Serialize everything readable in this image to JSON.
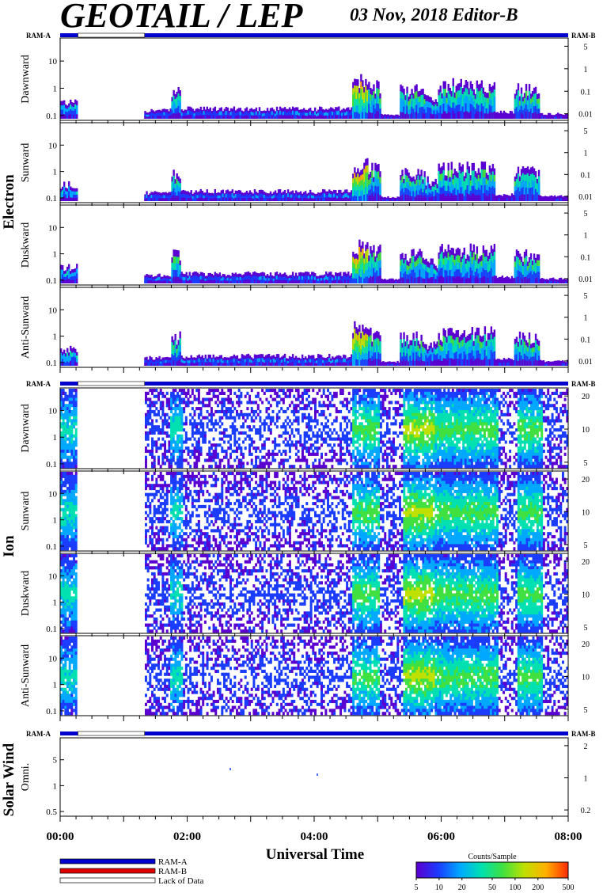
{
  "header": {
    "title": "GEOTAIL / LEP",
    "date_editor": "03 Nov, 2018   Editor-B"
  },
  "groups": [
    {
      "label": "Electron",
      "ram_left": "RAM-A",
      "ram_right": "RAM-B"
    },
    {
      "label": "Ion",
      "ram_left": "RAM-A",
      "ram_right": "RAM-B"
    },
    {
      "label": "Solar Wind",
      "ram_left": "RAM-A",
      "ram_right": "RAM-B"
    }
  ],
  "legend": {
    "items": [
      {
        "label": "RAM-A",
        "color": "#0000cc"
      },
      {
        "label": "RAM-B",
        "color": "#dd0000"
      },
      {
        "label": "Lack of Data",
        "color": "#ffffff"
      }
    ],
    "colorbar_title": "Counts/Sample",
    "colorbar_ticks": [
      "5",
      "10",
      "20",
      "50",
      "100",
      "200",
      "500"
    ]
  },
  "chart_data": {
    "type": "heatmap",
    "xlabel": "Universal Time",
    "x_ticks": [
      "00:00",
      "02:00",
      "04:00",
      "06:00",
      "08:00"
    ],
    "xlim_hours": [
      0,
      8
    ],
    "data_gap_hours": [
      0.28,
      1.33
    ],
    "panels": [
      {
        "group": "Electron",
        "ylabel": "Dawnward",
        "left_ticks": [
          "10",
          "1",
          "0.1"
        ],
        "right_ticks": [
          "5",
          "1",
          "0.1",
          "0.01"
        ]
      },
      {
        "group": "Electron",
        "ylabel": "Sunward",
        "left_ticks": [
          "10",
          "1",
          "0.1"
        ],
        "right_ticks": [
          "5",
          "1",
          "0.1",
          "0.01"
        ]
      },
      {
        "group": "Electron",
        "ylabel": "Duskward",
        "left_ticks": [
          "10",
          "1",
          "0.1"
        ],
        "right_ticks": [
          "5",
          "1",
          "0.1",
          "0.01"
        ]
      },
      {
        "group": "Electron",
        "ylabel": "Anti-Sunward",
        "left_ticks": [
          "10",
          "1",
          "0.1"
        ],
        "right_ticks": [
          "5",
          "1",
          "0.1",
          "0.01"
        ]
      },
      {
        "group": "Ion",
        "ylabel": "Dawnward",
        "left_ticks": [
          "10",
          "1",
          "0.1"
        ],
        "right_ticks": [
          "20",
          "10",
          "5"
        ]
      },
      {
        "group": "Ion",
        "ylabel": "Sunward",
        "left_ticks": [
          "10",
          "1",
          "0.1"
        ],
        "right_ticks": [
          "20",
          "10",
          "5"
        ]
      },
      {
        "group": "Ion",
        "ylabel": "Duskward",
        "left_ticks": [
          "10",
          "1",
          "0.1"
        ],
        "right_ticks": [
          "20",
          "10",
          "5"
        ]
      },
      {
        "group": "Ion",
        "ylabel": "Anti-Sunward",
        "left_ticks": [
          "10",
          "1",
          "0.1"
        ],
        "right_ticks": [
          "20",
          "10",
          "5"
        ]
      },
      {
        "group": "Solar Wind",
        "ylabel": "Omni.",
        "left_ticks": [
          "5",
          "1",
          "0.5"
        ],
        "right_ticks": [
          "2",
          "1",
          "0.2"
        ]
      }
    ],
    "colorscale": [
      "#5a00d0",
      "#1a3cff",
      "#00a8ff",
      "#00e0b0",
      "#40e040",
      "#c0e000",
      "#ffb000",
      "#ff3000"
    ],
    "colorscale_range": [
      5,
      500
    ]
  }
}
